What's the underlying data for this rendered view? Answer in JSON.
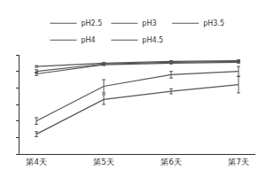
{
  "chart_data": {
    "type": "line",
    "categories": [
      "第4天",
      "第5天",
      "第6天",
      "第7天"
    ],
    "series": [
      {
        "name": "pH2.5",
        "color": "#555555",
        "values": [
          1.2,
          3.3,
          3.8,
          4.2
        ],
        "errors": [
          0.15,
          0.3,
          0.15,
          0.5
        ]
      },
      {
        "name": "pH3",
        "color": "#555555",
        "values": [
          2.0,
          4.1,
          4.8,
          5.0
        ],
        "errors": [
          0.2,
          0.4,
          0.2,
          0.3
        ]
      },
      {
        "name": "pH3.5",
        "color": "#555555",
        "values": [
          4.85,
          5.4,
          5.5,
          5.55
        ],
        "errors": [
          0.1,
          0.05,
          0.05,
          0.05
        ]
      },
      {
        "name": "pH4",
        "color": "#555555",
        "values": [
          5.0,
          5.45,
          5.55,
          5.6
        ],
        "errors": [
          0.1,
          0.05,
          0.05,
          0.05
        ]
      },
      {
        "name": "pH4.5",
        "color": "#555555",
        "values": [
          5.3,
          5.5,
          5.6,
          5.65
        ],
        "errors": [
          0.05,
          0.05,
          0.05,
          0.05
        ]
      }
    ],
    "ylim": [
      0,
      6
    ],
    "yticks": [
      0,
      1,
      2,
      3,
      4,
      5,
      6
    ],
    "grid": false,
    "legend": "top",
    "tick_labels": "x",
    "line_style": "solid"
  }
}
